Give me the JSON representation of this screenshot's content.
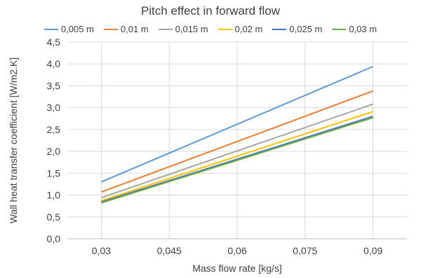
{
  "chart_data": {
    "type": "line",
    "title": "Pitch effect in forward flow",
    "xlabel": "Mass flow rate [kg/s]",
    "ylabel": "Wall heat transfer coefficient [W/m2.K]",
    "x": [
      0.03,
      0.09
    ],
    "x_ticks": [
      "0,03",
      "0,045",
      "0,06",
      "0,075",
      "0,09"
    ],
    "x_tick_values": [
      0.03,
      0.045,
      0.06,
      0.075,
      0.09
    ],
    "xlim": [
      0.0225,
      0.0975
    ],
    "ylim": [
      0,
      4.5
    ],
    "y_ticks": [
      "0,0",
      "0,5",
      "1,0",
      "1,5",
      "2,0",
      "2,5",
      "3,0",
      "3,5",
      "4,0",
      "4,5"
    ],
    "y_tick_values": [
      0,
      0.5,
      1.0,
      1.5,
      2.0,
      2.5,
      3.0,
      3.5,
      4.0,
      4.5
    ],
    "grid": true,
    "legend_position": "top",
    "series": [
      {
        "name": "0,005 m",
        "color": "#5B9BD5",
        "values": [
          1.3,
          3.94
        ]
      },
      {
        "name": "0,01 m",
        "color": "#ED7D31",
        "values": [
          1.07,
          3.38
        ]
      },
      {
        "name": "0,015 m",
        "color": "#A5A5A5",
        "values": [
          0.94,
          3.08
        ]
      },
      {
        "name": "0,02 m",
        "color": "#FFC000",
        "values": [
          0.87,
          2.91
        ]
      },
      {
        "name": "0,025 m",
        "color": "#4472C4",
        "values": [
          0.84,
          2.8
        ]
      },
      {
        "name": "0,03 m",
        "color": "#70AD47",
        "values": [
          0.82,
          2.77
        ]
      }
    ]
  }
}
